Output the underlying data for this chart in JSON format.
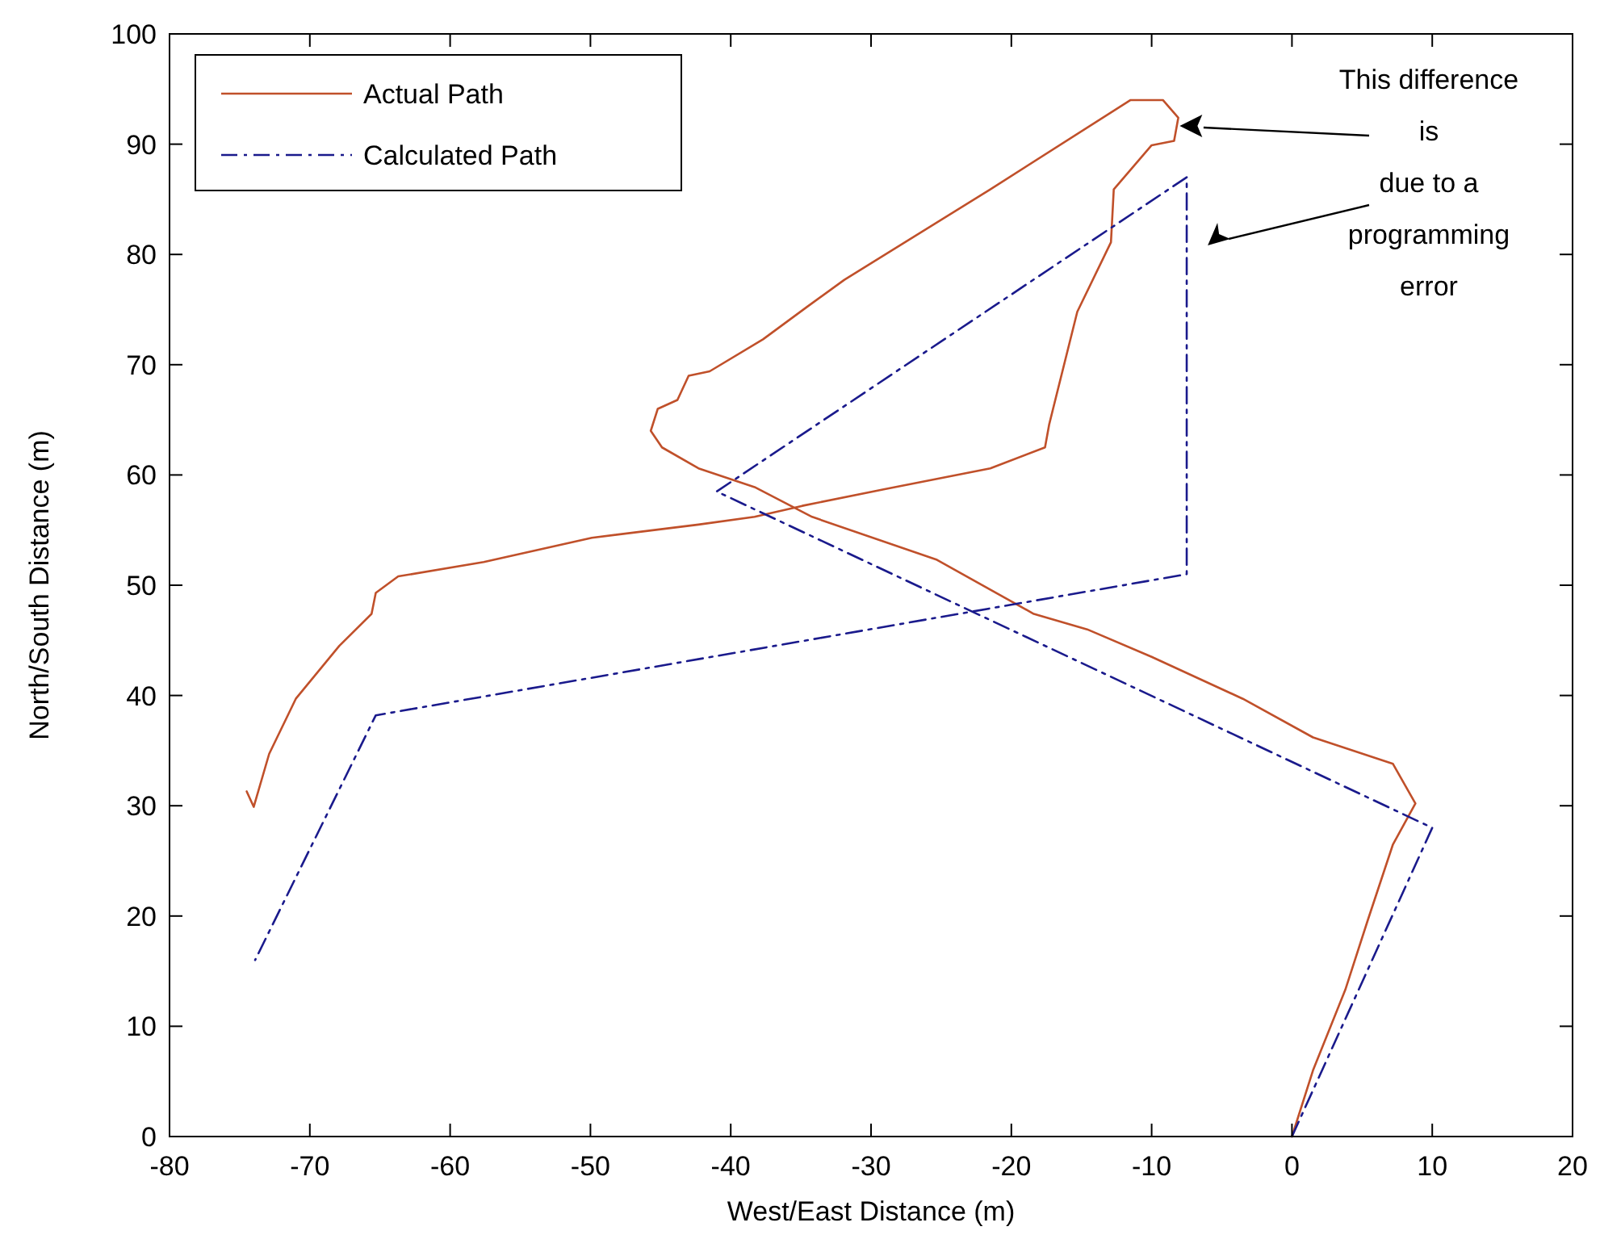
{
  "chart_data": {
    "type": "line",
    "xlabel": "West/East Distance (m)",
    "ylabel": "North/South Distance (m)",
    "xlim": [
      -80,
      20
    ],
    "ylim": [
      0,
      100
    ],
    "xticks": [
      -80,
      -70,
      -60,
      -50,
      -40,
      -30,
      -20,
      -10,
      0,
      10,
      20
    ],
    "yticks": [
      0,
      10,
      20,
      30,
      40,
      50,
      60,
      70,
      80,
      90,
      100
    ],
    "grid": false,
    "legend": "top left",
    "marker": "none",
    "annotations": [
      "This difference\nis\ndue to a\nprogramming\nerror"
    ],
    "series": [
      {
        "name": "Actual Path",
        "color": "#c0502a",
        "line_style": "solid",
        "x": [
          0,
          1.5,
          3.8,
          5.4,
          7.2,
          8.8,
          7.2,
          1.5,
          -3.5,
          -10,
          -14.6,
          -18.4,
          -25.3,
          -34.2,
          -38.3,
          -42.3,
          -44.9,
          -45.7,
          -45.2,
          -43.8,
          -43,
          -41.5,
          -37.7,
          -34.5,
          -31.9,
          -21.5,
          -11.5,
          -9.2,
          -8.1,
          -8.4,
          -10,
          -12.7,
          -12.9,
          -15.3,
          -17.3,
          -17.6,
          -21.5,
          -29.1,
          -34.9,
          -38.3,
          -42.3,
          -49.9,
          -57.6,
          -63.7,
          -65.3,
          -65.6,
          -67.9,
          -71,
          -72.9,
          -74,
          -74.5
        ],
        "values": [
          0,
          6,
          13.3,
          19.6,
          26.5,
          30.2,
          33.8,
          36.2,
          39.7,
          43.5,
          46,
          47.4,
          52.3,
          56.2,
          58.9,
          60.6,
          62.5,
          64,
          66,
          66.8,
          69,
          69.4,
          72.3,
          75.3,
          77.7,
          85.9,
          94,
          94,
          92.4,
          90.3,
          89.9,
          85.9,
          81.1,
          74.8,
          64.6,
          62.5,
          60.6,
          58.7,
          57.2,
          56.2,
          55.5,
          54.3,
          52.1,
          50.8,
          49.3,
          47.4,
          44.5,
          39.7,
          34.7,
          29.9,
          31.3
        ]
      },
      {
        "name": "Calculated Path",
        "color": "#1a1a8c",
        "line_style": "dashdot",
        "x": [
          0,
          10,
          -41,
          -7.5,
          -7.5,
          -65.3,
          -73.9
        ],
        "values": [
          0,
          28,
          58.5,
          87,
          51,
          38.2,
          16
        ]
      }
    ]
  }
}
